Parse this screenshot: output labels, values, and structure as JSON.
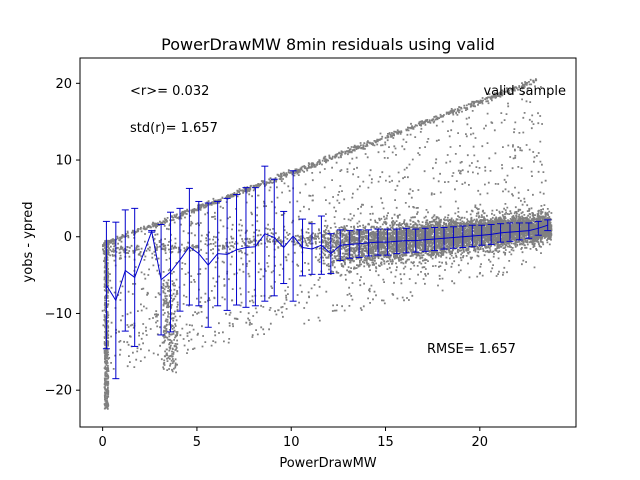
{
  "chart_data": {
    "type": "scatter",
    "title": "PowerDrawMW 8min residuals using valid",
    "xlabel": "PowerDrawMW",
    "ylabel": "yobs - ypred",
    "xlim": [
      -1.2,
      25.1
    ],
    "ylim": [
      -24.8,
      23.3
    ],
    "xticks": [
      0,
      5,
      10,
      15,
      20
    ],
    "yticks": [
      -20,
      -10,
      0,
      10,
      20
    ],
    "grid": false,
    "annotations": {
      "mean": "<r>= 0.032",
      "std": "std(r)= 1.657",
      "rmse": "RMSE= 1.657",
      "sample": "valid sample"
    },
    "colors": {
      "points": "#808080",
      "errorbars": "#0000cc"
    },
    "errorbars": [
      {
        "x": 0.2,
        "y": -6.3,
        "err": 8.3
      },
      {
        "x": 0.7,
        "y": -8.3,
        "err": 10.2
      },
      {
        "x": 1.2,
        "y": -4.4,
        "err": 7.9
      },
      {
        "x": 1.7,
        "y": -5.3,
        "err": 9.0
      },
      {
        "x": 2.6,
        "y": 0.7,
        "err": 0.1
      },
      {
        "x": 3.1,
        "y": -5.6,
        "err": 7.2
      },
      {
        "x": 3.6,
        "y": -4.6,
        "err": 7.8
      },
      {
        "x": 4.1,
        "y": -3.0,
        "err": 6.7
      },
      {
        "x": 4.6,
        "y": -1.3,
        "err": 7.6
      },
      {
        "x": 5.1,
        "y": -2.2,
        "err": 6.8
      },
      {
        "x": 5.6,
        "y": -3.7,
        "err": 8.1
      },
      {
        "x": 6.1,
        "y": -2.2,
        "err": 6.8
      },
      {
        "x": 6.6,
        "y": -2.3,
        "err": 7.3
      },
      {
        "x": 7.1,
        "y": -1.7,
        "err": 7.2
      },
      {
        "x": 7.6,
        "y": -1.4,
        "err": 7.8
      },
      {
        "x": 8.1,
        "y": -1.3,
        "err": 7.7
      },
      {
        "x": 8.6,
        "y": 0.4,
        "err": 8.8
      },
      {
        "x": 9.1,
        "y": -0.1,
        "err": 7.6
      },
      {
        "x": 9.6,
        "y": -1.4,
        "err": 4.7
      },
      {
        "x": 10.1,
        "y": 0.1,
        "err": 8.5
      },
      {
        "x": 10.6,
        "y": -1.4,
        "err": 3.7
      },
      {
        "x": 11.1,
        "y": -1.6,
        "err": 3.3
      },
      {
        "x": 11.6,
        "y": -1.1,
        "err": 3.8
      },
      {
        "x": 12.1,
        "y": -2.2,
        "err": 2.6
      },
      {
        "x": 12.6,
        "y": -1.1,
        "err": 2.0
      },
      {
        "x": 13.1,
        "y": -1.0,
        "err": 1.8
      },
      {
        "x": 13.6,
        "y": -0.9,
        "err": 1.8
      },
      {
        "x": 14.1,
        "y": -0.8,
        "err": 1.7
      },
      {
        "x": 14.6,
        "y": -0.7,
        "err": 1.7
      },
      {
        "x": 15.1,
        "y": -0.7,
        "err": 1.7
      },
      {
        "x": 15.6,
        "y": -0.6,
        "err": 1.6
      },
      {
        "x": 16.1,
        "y": -0.5,
        "err": 1.6
      },
      {
        "x": 16.6,
        "y": -0.5,
        "err": 1.5
      },
      {
        "x": 17.1,
        "y": -0.4,
        "err": 1.5
      },
      {
        "x": 17.6,
        "y": -0.3,
        "err": 1.5
      },
      {
        "x": 18.1,
        "y": -0.2,
        "err": 1.4
      },
      {
        "x": 18.6,
        "y": -0.1,
        "err": 1.4
      },
      {
        "x": 19.1,
        "y": 0.0,
        "err": 1.4
      },
      {
        "x": 19.6,
        "y": 0.1,
        "err": 1.4
      },
      {
        "x": 20.1,
        "y": 0.2,
        "err": 1.3
      },
      {
        "x": 20.6,
        "y": 0.3,
        "err": 1.3
      },
      {
        "x": 21.1,
        "y": 0.5,
        "err": 1.2
      },
      {
        "x": 21.6,
        "y": 0.6,
        "err": 1.2
      },
      {
        "x": 22.1,
        "y": 0.7,
        "err": 1.1
      },
      {
        "x": 22.6,
        "y": 0.8,
        "err": 1.0
      },
      {
        "x": 23.1,
        "y": 1.1,
        "err": 0.9
      },
      {
        "x": 23.6,
        "y": 1.5,
        "err": 0.7
      }
    ]
  }
}
